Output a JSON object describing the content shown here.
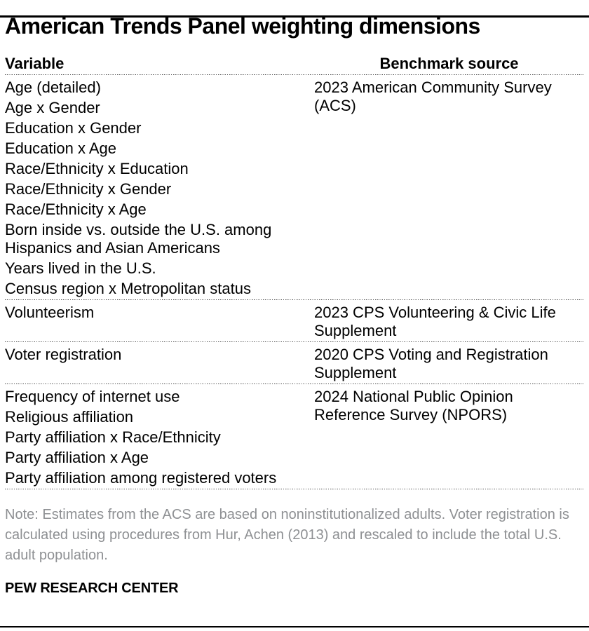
{
  "title": "American Trends Panel weighting dimensions",
  "colors": {
    "text": "#000000",
    "note_gray": "#8e9093",
    "dotted_rule": "#4d4d4d",
    "solid_rule": "#000000"
  },
  "chart_data": {
    "type": "table",
    "title": "American Trends Panel weighting dimensions",
    "columns": [
      "Variable",
      "Benchmark source"
    ],
    "groups": [
      {
        "variables": [
          "Age (detailed)",
          "Age x Gender",
          "Education x Gender",
          "Education x Age",
          "Race/Ethnicity x Education",
          "Race/Ethnicity x Gender",
          "Race/Ethnicity x Age",
          "Born inside vs. outside the U.S. among Hispanics and Asian Americans",
          "Years lived in the U.S.",
          "Census region x Metropolitan status"
        ],
        "source": "2023 American Community Survey (ACS)"
      },
      {
        "variables": [
          "Volunteerism"
        ],
        "source": "2023 CPS Volunteering & Civic Life Supplement"
      },
      {
        "variables": [
          "Voter registration"
        ],
        "source": "2020 CPS Voting and Registration Supplement"
      },
      {
        "variables": [
          "Frequency of internet use",
          "Religious affiliation",
          "Party affiliation x Race/Ethnicity",
          "Party affiliation x Age",
          "Party affiliation among registered voters"
        ],
        "source": "2024 National Public Opinion Reference Survey (NPORS)"
      }
    ]
  },
  "note": "Note: Estimates from the ACS are based on noninstitutionalized adults. Voter registration is calculated using procedures from Hur, Achen (2013) and rescaled to include the total U.S. adult population.",
  "footer": "PEW RESEARCH CENTER"
}
